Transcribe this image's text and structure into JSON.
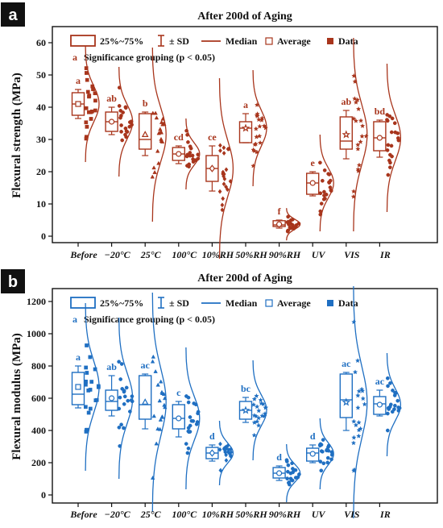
{
  "chart_data": [
    {
      "type": "box",
      "panel_label": "a",
      "title": "After 200d of Aging",
      "ylabel": "Flexural strength (MPa)",
      "xlabel": "",
      "ylim": [
        -2,
        65
      ],
      "yticks": [
        0,
        10,
        20,
        30,
        40,
        50,
        60
      ],
      "color": "#a8351c",
      "categories": [
        "Before",
        "−20°C",
        "25°C",
        "100°C",
        "10%RH",
        "50%RH",
        "90%RH",
        "UV",
        "VIS",
        "IR"
      ],
      "legend": [
        "25%~75%",
        "± SD",
        "Median",
        "Average",
        "Data"
      ],
      "legend_extra": {
        "marker": "a",
        "text": "Significance grouping (p < 0.05)"
      },
      "groups": [
        {
          "category": "Before",
          "q1": 37.5,
          "median": 41,
          "q3": 44.5,
          "mean": 41,
          "whisker_low": 36.5,
          "whisker_high": 45.5,
          "significance": "a",
          "marker": "square"
        },
        {
          "category": "−20°C",
          "q1": 32.5,
          "median": 35.5,
          "q3": 38.5,
          "mean": 35.5,
          "whisker_low": 31.5,
          "whisker_high": 40,
          "significance": "ab",
          "marker": "circle"
        },
        {
          "category": "25°C",
          "q1": 27,
          "median": 30,
          "q3": 38,
          "mean": 31.5,
          "whisker_low": 25,
          "whisker_high": 38.5,
          "significance": "b",
          "marker": "triangle"
        },
        {
          "category": "100°C",
          "q1": 23.5,
          "median": 25.5,
          "q3": 27.5,
          "mean": 25.5,
          "whisker_low": 22.5,
          "whisker_high": 28,
          "significance": "cd",
          "marker": "circle"
        },
        {
          "category": "10%RH",
          "q1": 17,
          "median": 21,
          "q3": 25,
          "mean": 21,
          "whisker_low": 14,
          "whisker_high": 28,
          "significance": "ce",
          "marker": "diamond"
        },
        {
          "category": "50%RH",
          "q1": 29,
          "median": 33.5,
          "q3": 35.5,
          "mean": 33.5,
          "whisker_low": 29,
          "whisker_high": 38,
          "significance": "a",
          "marker": "star"
        },
        {
          "category": "90%RH",
          "q1": 3,
          "median": 3.5,
          "q3": 4.8,
          "mean": 3.7,
          "whisker_low": 2.5,
          "whisker_high": 5,
          "significance": "f",
          "marker": "circle"
        },
        {
          "category": "UV",
          "q1": 13,
          "median": 16.5,
          "q3": 19.5,
          "mean": 16.5,
          "whisker_low": 12.5,
          "whisker_high": 20,
          "significance": "e",
          "marker": "circle"
        },
        {
          "category": "VIS",
          "q1": 27,
          "median": 29.5,
          "q3": 37,
          "mean": 31.5,
          "whisker_low": 24,
          "whisker_high": 39,
          "significance": "ab",
          "marker": "star"
        },
        {
          "category": "IR",
          "q1": 26.5,
          "median": 30.5,
          "q3": 35.5,
          "mean": 30.5,
          "whisker_low": 24.5,
          "whisker_high": 36,
          "significance": "bd",
          "marker": "circle"
        }
      ]
    },
    {
      "type": "box",
      "panel_label": "b",
      "title": "After 200d of Aging",
      "ylabel": "Flexural modulus (MPa)",
      "xlabel": "",
      "ylim": [
        -50,
        1280
      ],
      "yticks": [
        0,
        200,
        400,
        600,
        800,
        1000,
        1200
      ],
      "color": "#1f6fc2",
      "categories": [
        "Before",
        "−20°C",
        "25°C",
        "100°C",
        "10%RH",
        "50%RH",
        "90%RH",
        "UV",
        "VIS",
        "IR"
      ],
      "legend": [
        "25%~75%",
        "± SD",
        "Median",
        "Average",
        "Data"
      ],
      "legend_extra": {
        "marker": "a",
        "text": "Significance grouping (p < 0.05)"
      },
      "groups": [
        {
          "category": "Before",
          "q1": 560,
          "median": 625,
          "q3": 760,
          "mean": 670,
          "whisker_low": 540,
          "whisker_high": 800,
          "significance": "a",
          "marker": "square"
        },
        {
          "category": "−20°C",
          "q1": 525,
          "median": 580,
          "q3": 650,
          "mean": 600,
          "whisker_low": 490,
          "whisker_high": 740,
          "significance": "ab",
          "marker": "circle"
        },
        {
          "category": "25°C",
          "q1": 470,
          "median": 560,
          "q3": 740,
          "mean": 575,
          "whisker_low": 410,
          "whisker_high": 750,
          "significance": "ac",
          "marker": "triangle"
        },
        {
          "category": "100°C",
          "q1": 410,
          "median": 475,
          "q3": 560,
          "mean": 475,
          "whisker_low": 360,
          "whisker_high": 580,
          "significance": "c",
          "marker": "circle"
        },
        {
          "category": "10%RH",
          "q1": 225,
          "median": 260,
          "q3": 295,
          "mean": 260,
          "whisker_low": 210,
          "whisker_high": 310,
          "significance": "d",
          "marker": "diamond"
        },
        {
          "category": "50%RH",
          "q1": 470,
          "median": 525,
          "q3": 580,
          "mean": 525,
          "whisker_low": 450,
          "whisker_high": 605,
          "significance": "bc",
          "marker": "star"
        },
        {
          "category": "90%RH",
          "q1": 105,
          "median": 135,
          "q3": 170,
          "mean": 135,
          "whisker_low": 90,
          "whisker_high": 180,
          "significance": "d",
          "marker": "circle"
        },
        {
          "category": "UV",
          "q1": 210,
          "median": 260,
          "q3": 290,
          "mean": 255,
          "whisker_low": 200,
          "whisker_high": 310,
          "significance": "d",
          "marker": "circle"
        },
        {
          "category": "VIS",
          "q1": 480,
          "median": 590,
          "q3": 750,
          "mean": 575,
          "whisker_low": 400,
          "whisker_high": 760,
          "significance": "ac",
          "marker": "star"
        },
        {
          "category": "IR",
          "q1": 500,
          "median": 565,
          "q3": 610,
          "mean": 560,
          "whisker_low": 490,
          "whisker_high": 650,
          "significance": "ac",
          "marker": "circle"
        }
      ]
    }
  ]
}
